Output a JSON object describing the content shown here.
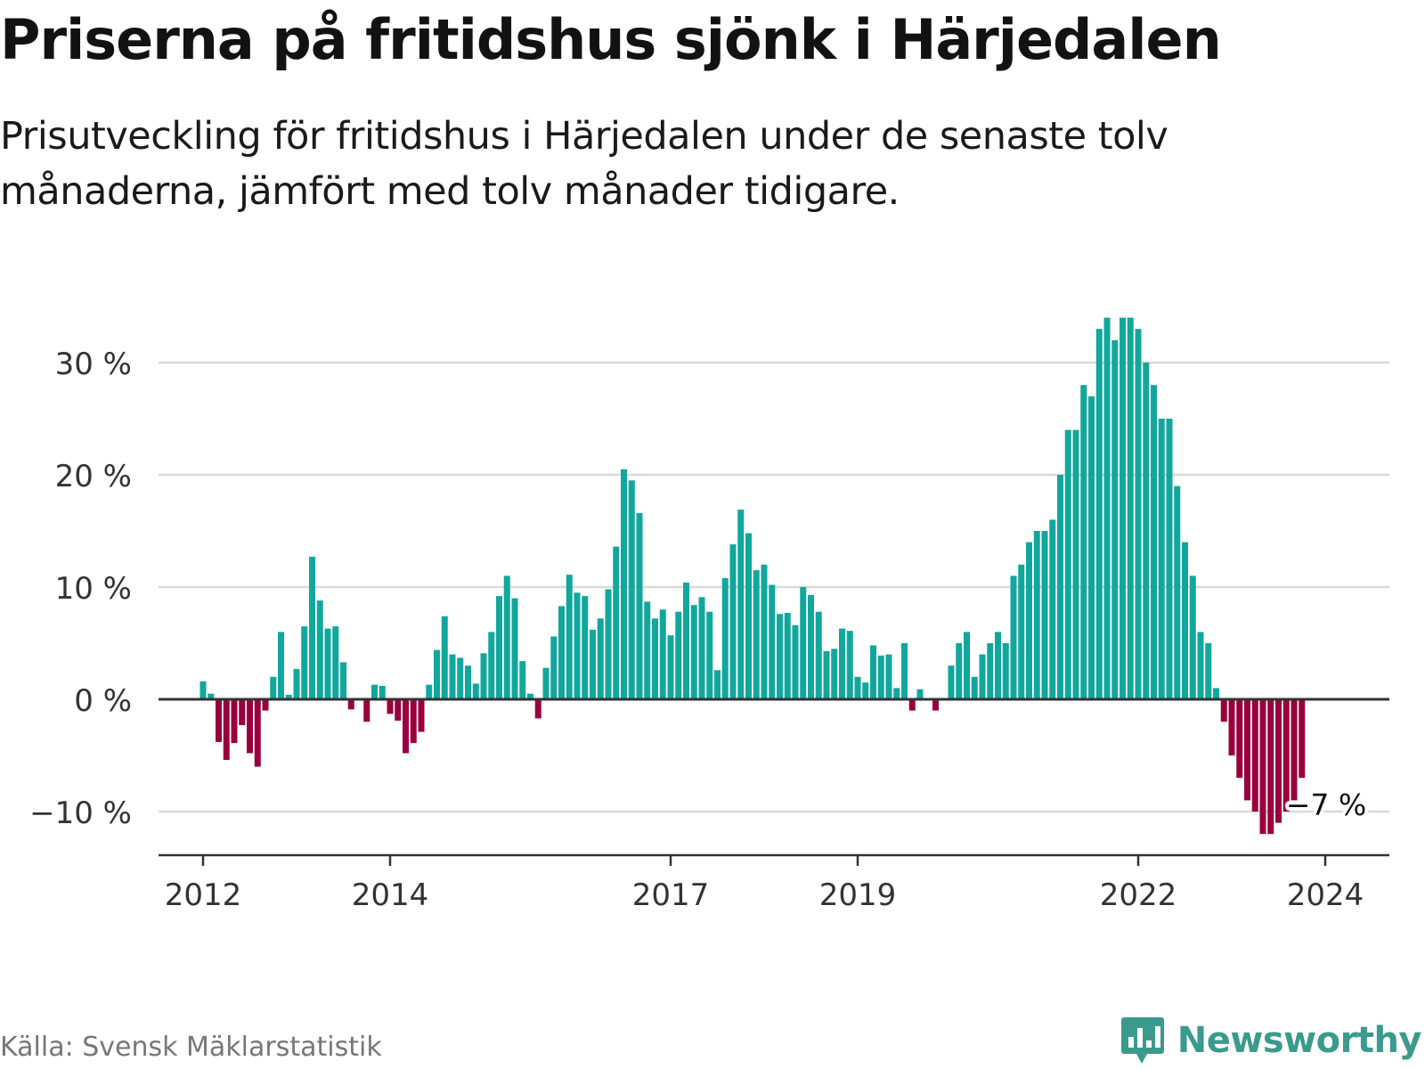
{
  "header": {
    "title": "Priserna på fritidshus sjönk i Härjedalen",
    "subtitle": "Prisutveckling för fritidshus i Härjedalen under de senaste tolv månaderna, jämfört med tolv månader tidigare."
  },
  "footer": {
    "source": "Källa: Svensk Mäklarstatistik",
    "brand": "Newsworthy"
  },
  "colors": {
    "positive": "#11a79d",
    "negative": "#99003d",
    "grid": "#d9d9d9",
    "axis": "#333333",
    "brand": "#3a9a8e"
  },
  "chart_data": {
    "type": "bar",
    "title": "Priserna på fritidshus sjönk i Härjedalen",
    "xlabel": "",
    "ylabel": "",
    "unit": "%",
    "ylim": [
      -14,
      34
    ],
    "yticks": [
      {
        "value": -10,
        "label": "−10 %"
      },
      {
        "value": 0,
        "label": "0 %"
      },
      {
        "value": 10,
        "label": "10 %"
      },
      {
        "value": 20,
        "label": "20 %"
      },
      {
        "value": 30,
        "label": "30 %"
      }
    ],
    "xticks": [
      {
        "index": 0,
        "label": "2012"
      },
      {
        "index": 24,
        "label": "2014"
      },
      {
        "index": 60,
        "label": "2017"
      },
      {
        "index": 84,
        "label": "2019"
      },
      {
        "index": 120,
        "label": "2022"
      },
      {
        "index": 144,
        "label": "2024"
      }
    ],
    "last_label": "−7 %",
    "values": [
      1.6,
      0.5,
      -3.8,
      -5.4,
      -3.9,
      -2.3,
      -4.8,
      -6.0,
      -1.0,
      2.0,
      6.0,
      0.4,
      2.7,
      6.5,
      12.7,
      8.8,
      6.3,
      6.5,
      3.3,
      -0.9,
      0.0,
      -2.0,
      1.3,
      1.2,
      -1.3,
      -1.9,
      -4.8,
      -3.9,
      -2.9,
      1.3,
      4.4,
      7.4,
      4.0,
      3.7,
      3.0,
      1.4,
      4.1,
      6.0,
      9.2,
      11.0,
      9.0,
      3.4,
      0.5,
      -1.7,
      2.8,
      5.6,
      8.3,
      11.1,
      9.5,
      9.2,
      6.2,
      7.2,
      9.8,
      13.6,
      20.5,
      19.5,
      16.6,
      8.7,
      7.2,
      8.0,
      5.7,
      7.8,
      10.4,
      8.4,
      9.1,
      7.8,
      2.6,
      10.8,
      13.8,
      16.9,
      14.8,
      11.5,
      12.0,
      10.2,
      7.6,
      7.7,
      6.6,
      10.0,
      9.3,
      7.8,
      4.3,
      4.5,
      6.3,
      6.1,
      2.0,
      1.5,
      4.8,
      3.9,
      4.0,
      1.0,
      5.0,
      -1.0,
      0.9,
      0.0,
      -1.0,
      0.0,
      3.0,
      5.0,
      6.0,
      2.0,
      4.0,
      5.0,
      6.0,
      5.0,
      11.0,
      12.0,
      14.0,
      15.0,
      15.0,
      16.0,
      20.0,
      24.0,
      24.0,
      28.0,
      27.0,
      33.0,
      34.0,
      32.0,
      34.0,
      34.0,
      33.0,
      30.0,
      28.0,
      25.0,
      25.0,
      19.0,
      14.0,
      11.0,
      6.0,
      5.0,
      1.0,
      -2.0,
      -5.0,
      -7.0,
      -9.0,
      -10.0,
      -12.0,
      -12.0,
      -11.0,
      -10.0,
      -9.0,
      -7.0
    ]
  }
}
